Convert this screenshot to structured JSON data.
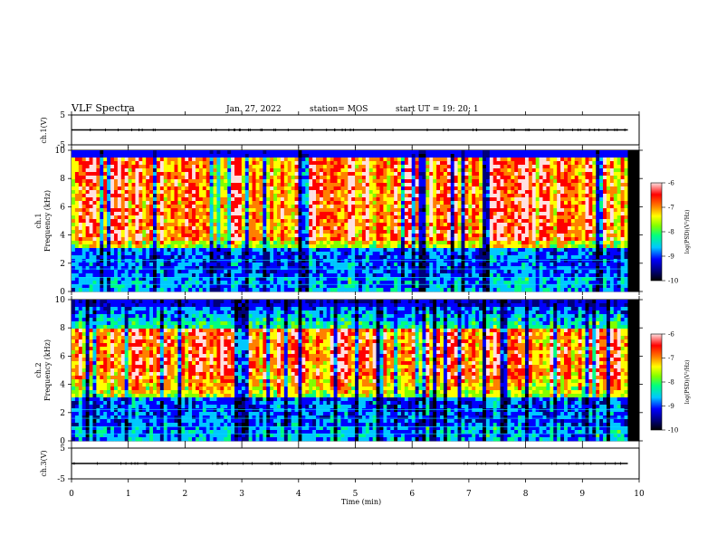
{
  "header": {
    "title": "VLF Spectra",
    "date": "Jan. 27, 2022",
    "station": "station= MOS",
    "start_ut": "start  UT =   19: 20: 1"
  },
  "chart_data": [
    {
      "type": "line",
      "ylabel": "ch.1(V)",
      "yticks": [
        "5",
        "-5"
      ],
      "ylim": [
        -5,
        5
      ],
      "x": [
        0,
        1,
        2,
        3,
        4,
        5,
        6,
        7,
        8,
        9,
        9.8
      ],
      "series": [
        {
          "values": [
            0,
            0,
            0,
            0,
            0,
            0,
            0,
            0,
            0,
            0,
            0
          ]
        }
      ]
    },
    {
      "type": "heatmap",
      "ylabel": "ch.1\nFrequency (kHz)",
      "yticks": [
        "0",
        "2",
        "4",
        "6",
        "8",
        "10"
      ],
      "ylim": [
        0,
        10
      ],
      "xlim": [
        0,
        9.8
      ],
      "dominant_band_khz": [
        3.5,
        9.5
      ],
      "colorbar": {
        "label": "log(PSD)(V²/Hz)",
        "ticks": [
          "-6",
          "-7",
          "-8",
          "-9",
          "-10"
        ],
        "range": [
          -10,
          -6
        ]
      }
    },
    {
      "type": "heatmap",
      "ylabel": "ch.2\nFrequency (kHz)",
      "yticks": [
        "0",
        "2",
        "4",
        "6",
        "8",
        "10"
      ],
      "ylim": [
        0,
        10
      ],
      "xlim": [
        0,
        9.8
      ],
      "dominant_band_khz": [
        4.5,
        8
      ],
      "colorbar": {
        "label": "log(PSD)(V²/Hz)",
        "ticks": [
          "-6",
          "-7",
          "-8",
          "-9",
          "-10"
        ],
        "range": [
          -10,
          -6
        ]
      }
    },
    {
      "type": "line",
      "ylabel": "ch.3(V)",
      "yticks": [
        "5",
        "-5"
      ],
      "ylim": [
        -5,
        5
      ],
      "x": [
        0,
        1,
        2,
        3,
        4,
        5,
        6,
        7,
        8,
        9,
        9.8
      ],
      "series": [
        {
          "values": [
            0,
            0,
            0,
            0,
            0,
            0,
            0,
            0,
            0,
            0,
            0
          ]
        }
      ]
    }
  ],
  "xaxis": {
    "label": "Time  (min)",
    "ticks": [
      "0",
      "1",
      "2",
      "3",
      "4",
      "5",
      "6",
      "7",
      "8",
      "9",
      "10"
    ],
    "xlim": [
      0,
      10
    ]
  },
  "colors": {
    "psd_scale": [
      "#000000",
      "#00007a",
      "#0000ff",
      "#00c8ff",
      "#00ff80",
      "#80ff00",
      "#ffff00",
      "#ff8000",
      "#ff0000",
      "#ffe0e0"
    ]
  }
}
